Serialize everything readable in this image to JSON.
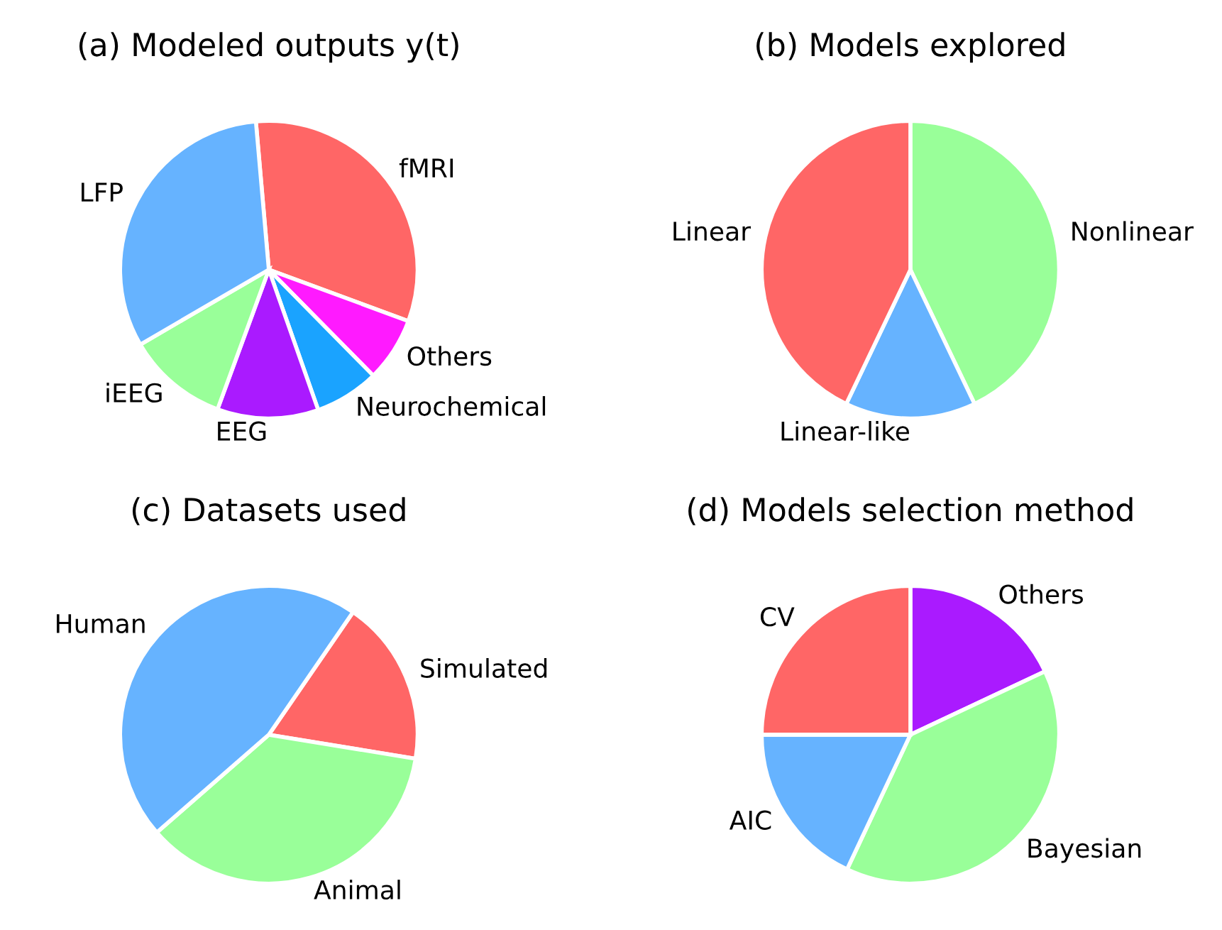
{
  "chart_data": [
    {
      "type": "pie",
      "title": "(a) Modeled outputs y(t)",
      "categories": [
        "fMRI",
        "Others",
        "Neurochemical",
        "EEG",
        "iEEG",
        "LFP"
      ],
      "values": [
        32,
        7,
        7,
        11,
        11,
        32
      ],
      "colors": [
        "#ff6666",
        "#ff1aff",
        "#1aa3ff",
        "#aa1aff",
        "#99ff99",
        "#66b3ff"
      ]
    },
    {
      "type": "pie",
      "title": "(b) Models explored",
      "categories": [
        "Nonlinear",
        "Linear-like",
        "Linear"
      ],
      "values": [
        42.9,
        14.2,
        42.9
      ],
      "colors": [
        "#99ff99",
        "#66b3ff",
        "#ff6666"
      ]
    },
    {
      "type": "pie",
      "title": "(c) Datasets used",
      "categories": [
        "Simulated",
        "Animal",
        "Human"
      ],
      "values": [
        18,
        36,
        46
      ],
      "colors": [
        "#ff6666",
        "#99ff99",
        "#66b3ff"
      ]
    },
    {
      "type": "pie",
      "title": "(d) Models selection method",
      "categories": [
        "Others",
        "Bayesian",
        "AIC",
        "CV"
      ],
      "values": [
        18,
        39,
        18,
        25
      ],
      "colors": [
        "#aa1aff",
        "#99ff99",
        "#66b3ff",
        "#ff6666"
      ]
    }
  ]
}
